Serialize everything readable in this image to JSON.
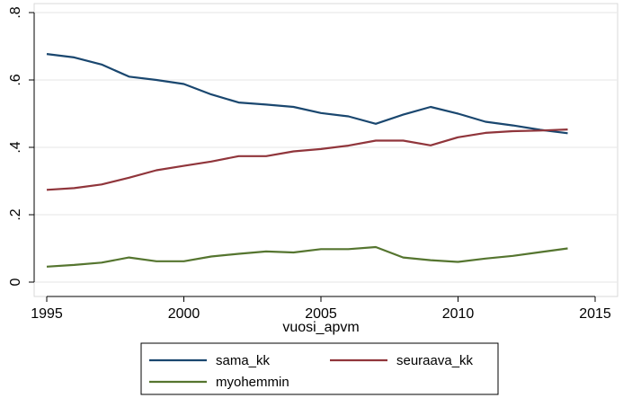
{
  "chart_data": {
    "type": "line",
    "title": "",
    "xlabel": "vuosi_apvm",
    "ylabel": "",
    "xlim": [
      1995,
      2015
    ],
    "ylim": [
      0,
      0.8
    ],
    "x_ticks": [
      1995,
      2000,
      2005,
      2010,
      2015
    ],
    "y_ticks": [
      0,
      0.2,
      0.4,
      0.6,
      0.8
    ],
    "y_tick_labels": [
      "0",
      ".2",
      ".4",
      ".6",
      ".8"
    ],
    "grid": "horizontal",
    "legend_position": "bottom",
    "x": [
      1995,
      1996,
      1997,
      1998,
      1999,
      2000,
      2001,
      2002,
      2003,
      2004,
      2005,
      2006,
      2007,
      2008,
      2009,
      2010,
      2011,
      2012,
      2013,
      2014
    ],
    "series": [
      {
        "name": "sama_kk",
        "color": "#1a476f",
        "values": [
          0.677,
          0.667,
          0.646,
          0.61,
          0.6,
          0.588,
          0.557,
          0.533,
          0.527,
          0.52,
          0.502,
          0.492,
          0.47,
          0.497,
          0.52,
          0.5,
          0.476,
          0.465,
          0.452,
          0.442
        ]
      },
      {
        "name": "seuraava_kk",
        "color": "#90353b",
        "values": [
          0.274,
          0.279,
          0.29,
          0.31,
          0.332,
          0.345,
          0.358,
          0.374,
          0.374,
          0.388,
          0.395,
          0.405,
          0.42,
          0.42,
          0.406,
          0.43,
          0.443,
          0.448,
          0.45,
          0.453
        ]
      },
      {
        "name": "myohemmin",
        "color": "#55752f",
        "values": [
          0.046,
          0.051,
          0.058,
          0.073,
          0.062,
          0.062,
          0.076,
          0.084,
          0.091,
          0.088,
          0.098,
          0.098,
          0.104,
          0.073,
          0.065,
          0.06,
          0.07,
          0.078,
          0.089,
          0.1
        ]
      }
    ]
  }
}
